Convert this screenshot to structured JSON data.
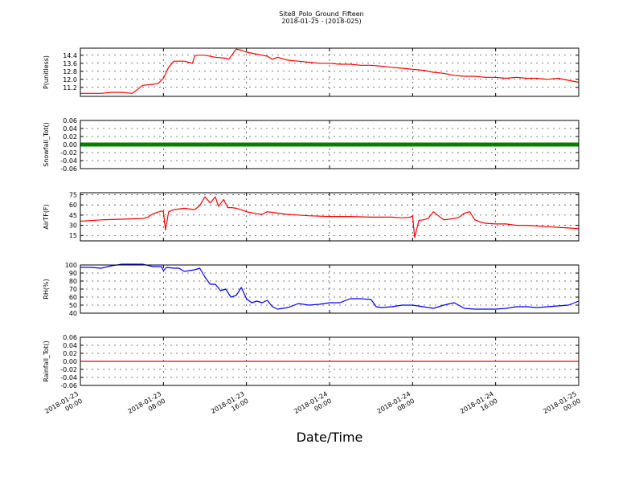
{
  "title": "Site8_Polo_Ground_Fifteen",
  "subtitle": "2018-01-25 - (2018-025)",
  "xlabel": "Date/Time",
  "x_ticks": [
    [
      "2018-01-23",
      "00:00"
    ],
    [
      "2018-01-23",
      "08:00"
    ],
    [
      "2018-01-23",
      "16:00"
    ],
    [
      "2018-01-24",
      "00:00"
    ],
    [
      "2018-01-24",
      "08:00"
    ],
    [
      "2018-01-24",
      "16:00"
    ],
    [
      "2018-01-25",
      "00:00"
    ]
  ],
  "colors": {
    "red": "#ff0000",
    "green": "#008000",
    "blue": "#0000ff"
  },
  "chart_data": [
    {
      "type": "line",
      "ylabel": "P(unitless)",
      "ylim": [
        10.3,
        15.1
      ],
      "yticks": [
        "11.2",
        "12.0",
        "12.8",
        "13.6",
        "14.4"
      ],
      "color": "#ff0000",
      "x": [
        0,
        1,
        2,
        3,
        4,
        5,
        6,
        7,
        7.5,
        8,
        8.5,
        9,
        10,
        10.8,
        11,
        11.2,
        12,
        13,
        14,
        14.3,
        15,
        15.5,
        16,
        17,
        18,
        18.5,
        19,
        20,
        21,
        22,
        23,
        24,
        25,
        26,
        27,
        28,
        29,
        30,
        31,
        32,
        33,
        34,
        35,
        36,
        37,
        38,
        39,
        40,
        41,
        42,
        43,
        44,
        45,
        46,
        47,
        48
      ],
      "y": [
        10.6,
        10.6,
        10.6,
        10.7,
        10.7,
        10.6,
        11.4,
        11.5,
        11.6,
        12.1,
        13.2,
        13.8,
        13.8,
        13.6,
        14.3,
        14.4,
        14.4,
        14.2,
        14.1,
        14.0,
        15.0,
        14.9,
        14.7,
        14.5,
        14.3,
        14.0,
        14.2,
        13.9,
        13.8,
        13.7,
        13.6,
        13.6,
        13.5,
        13.5,
        13.4,
        13.4,
        13.3,
        13.2,
        13.1,
        13.0,
        12.9,
        12.7,
        12.6,
        12.4,
        12.3,
        12.3,
        12.2,
        12.2,
        12.1,
        12.2,
        12.1,
        12.1,
        12.0,
        12.1,
        11.9,
        11.7
      ]
    },
    {
      "type": "line",
      "ylabel": "Snowfall_Tot()",
      "ylim": [
        -0.06,
        0.06
      ],
      "yticks": [
        "-0.06",
        "-0.04",
        "-0.02",
        "0.00",
        "0.02",
        "0.04",
        "0.06"
      ],
      "color": "#008000",
      "markers": true,
      "x": [
        0,
        48
      ],
      "y": [
        0,
        0
      ]
    },
    {
      "type": "line",
      "ylabel": "AirTF(F)",
      "ylim": [
        7,
        78
      ],
      "yticks": [
        "15",
        "30",
        "45",
        "60",
        "75"
      ],
      "color": "#ff0000",
      "x": [
        0,
        2,
        4,
        6,
        6.5,
        7,
        7.8,
        8,
        8.2,
        8.5,
        9,
        10,
        11,
        11.5,
        12,
        12.5,
        13,
        13.3,
        13.8,
        14.2,
        14.6,
        15,
        15.5,
        16,
        17,
        17.5,
        18,
        19,
        20,
        22,
        24,
        26,
        28,
        30,
        31,
        31.8,
        32,
        32.2,
        32.6,
        33,
        33.5,
        34,
        35,
        36,
        36.5,
        37,
        37.5,
        38,
        38.5,
        39,
        40,
        41,
        42,
        43,
        44,
        45,
        46,
        47,
        48
      ],
      "y": [
        36,
        38,
        39,
        40,
        42,
        47,
        51,
        50,
        23,
        50,
        53,
        55,
        53,
        59,
        72,
        63,
        72,
        58,
        68,
        56,
        56,
        55,
        53,
        50,
        47,
        46,
        50,
        48,
        46,
        44,
        43,
        43,
        42,
        42,
        41,
        42,
        44,
        12,
        37,
        38,
        40,
        50,
        38,
        40,
        42,
        48,
        50,
        38,
        35,
        33,
        32,
        32,
        30,
        30,
        29,
        28,
        27,
        26,
        25
      ]
    },
    {
      "type": "line",
      "ylabel": "RH(%)",
      "ylim": [
        40,
        100
      ],
      "yticks": [
        "40",
        "50",
        "60",
        "70",
        "80",
        "90",
        "100"
      ],
      "color": "#0000ff",
      "x": [
        0,
        1,
        2,
        3,
        4,
        5,
        6,
        7,
        7.8,
        8,
        8.3,
        9,
        9.5,
        10,
        11,
        11.5,
        12,
        12.5,
        13,
        13.5,
        14,
        14.5,
        15,
        15.5,
        16,
        16.5,
        17,
        17.5,
        18,
        18.5,
        19,
        20,
        21,
        22,
        23,
        24,
        25,
        26,
        27,
        28,
        28.5,
        29,
        30,
        31,
        32,
        33,
        34,
        35,
        36,
        37,
        38,
        39,
        40,
        41,
        42,
        43,
        44,
        45,
        46,
        47,
        48
      ],
      "y": [
        97,
        97,
        96,
        99,
        101,
        101,
        101,
        98,
        98,
        93,
        97,
        96,
        96,
        92,
        94,
        96,
        85,
        76,
        76,
        68,
        70,
        60,
        62,
        72,
        58,
        53,
        55,
        53,
        56,
        48,
        45,
        47,
        52,
        50,
        51,
        53,
        53,
        58,
        58,
        57,
        48,
        47,
        48,
        50,
        50,
        48,
        46,
        50,
        53,
        46,
        45,
        45,
        45,
        46,
        48,
        48,
        47,
        48,
        49,
        50,
        55
      ]
    },
    {
      "type": "line",
      "ylabel": "Rainfall_Tot()",
      "ylim": [
        -0.06,
        0.06
      ],
      "yticks": [
        "-0.06",
        "-0.04",
        "-0.02",
        "0.00",
        "0.02",
        "0.04",
        "0.06"
      ],
      "color": "#ff0000",
      "x": [
        0,
        48
      ],
      "y": [
        0,
        0
      ]
    }
  ]
}
